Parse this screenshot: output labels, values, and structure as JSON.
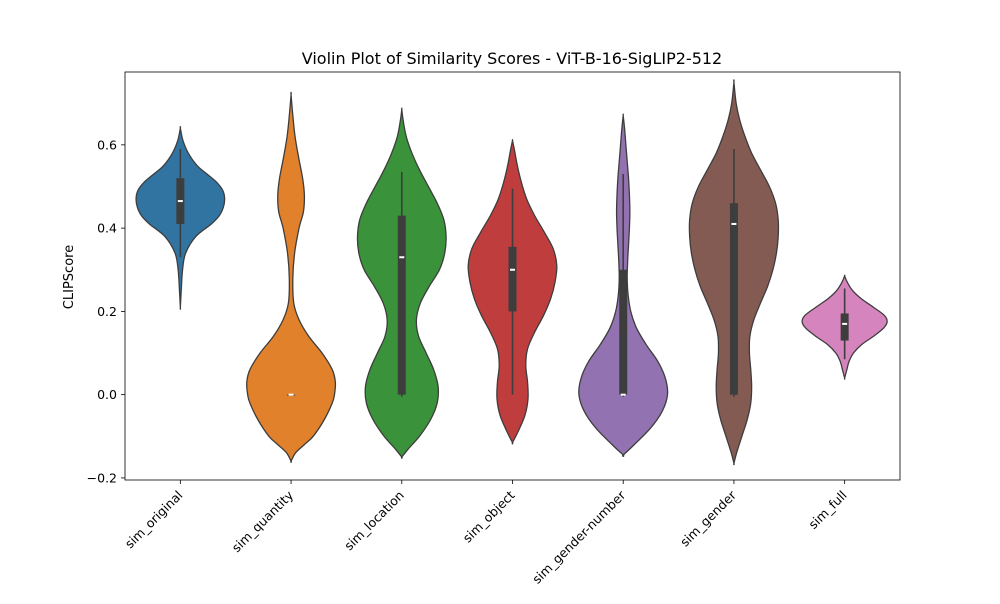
{
  "chart_data": {
    "type": "violin",
    "title": "Violin Plot of Similarity Scores - ViT-B-16-SigLIP2-512",
    "xlabel": "",
    "ylabel": "CLIPScore",
    "ylim": [
      -0.205,
      0.775
    ],
    "yticks": [
      "−0.2",
      "0.0",
      "0.2",
      "0.4",
      "0.6"
    ],
    "ytick_values": [
      -0.2,
      0.0,
      0.2,
      0.4,
      0.6
    ],
    "grid": false,
    "legend": "none",
    "categories": [
      "sim_original",
      "sim_quantity",
      "sim_location",
      "sim_object",
      "sim_gender-number",
      "sim_gender",
      "sim_full"
    ],
    "violins": [
      {
        "category": "sim_original",
        "color": "#3274a1",
        "min": 0.21,
        "max": 0.64,
        "q1": 0.41,
        "median": 0.465,
        "q3": 0.52,
        "whisker_low": 0.33,
        "whisker_high": 0.59,
        "profile": [
          [
            0.21,
            0.0
          ],
          [
            0.25,
            0.02
          ],
          [
            0.3,
            0.05
          ],
          [
            0.34,
            0.12
          ],
          [
            0.38,
            0.35
          ],
          [
            0.41,
            0.7
          ],
          [
            0.43,
            0.88
          ],
          [
            0.45,
            0.97
          ],
          [
            0.47,
            1.0
          ],
          [
            0.49,
            0.96
          ],
          [
            0.51,
            0.82
          ],
          [
            0.53,
            0.6
          ],
          [
            0.55,
            0.38
          ],
          [
            0.58,
            0.18
          ],
          [
            0.61,
            0.06
          ],
          [
            0.64,
            0.0
          ]
        ]
      },
      {
        "category": "sim_quantity",
        "color": "#e1812c",
        "min": -0.16,
        "max": 0.72,
        "q1": 0.0,
        "median": 0.0,
        "q3": 0.0,
        "whisker_low": 0.0,
        "whisker_high": 0.0,
        "profile": [
          [
            -0.16,
            0.0
          ],
          [
            -0.14,
            0.1
          ],
          [
            -0.12,
            0.3
          ],
          [
            -0.1,
            0.5
          ],
          [
            -0.06,
            0.75
          ],
          [
            -0.02,
            0.93
          ],
          [
            0.0,
            0.98
          ],
          [
            0.03,
            1.0
          ],
          [
            0.06,
            0.93
          ],
          [
            0.1,
            0.7
          ],
          [
            0.14,
            0.4
          ],
          [
            0.18,
            0.18
          ],
          [
            0.22,
            0.06
          ],
          [
            0.28,
            0.04
          ],
          [
            0.34,
            0.08
          ],
          [
            0.4,
            0.18
          ],
          [
            0.44,
            0.28
          ],
          [
            0.48,
            0.3
          ],
          [
            0.52,
            0.26
          ],
          [
            0.57,
            0.17
          ],
          [
            0.62,
            0.09
          ],
          [
            0.67,
            0.04
          ],
          [
            0.72,
            0.0
          ]
        ]
      },
      {
        "category": "sim_location",
        "color": "#3a923a",
        "min": -0.15,
        "max": 0.685,
        "q1": 0.0,
        "median": 0.33,
        "q3": 0.43,
        "whisker_low": -0.005,
        "whisker_high": 0.535,
        "profile": [
          [
            -0.15,
            0.0
          ],
          [
            -0.13,
            0.15
          ],
          [
            -0.1,
            0.4
          ],
          [
            -0.06,
            0.65
          ],
          [
            -0.02,
            0.8
          ],
          [
            0.02,
            0.82
          ],
          [
            0.06,
            0.72
          ],
          [
            0.1,
            0.55
          ],
          [
            0.14,
            0.38
          ],
          [
            0.18,
            0.33
          ],
          [
            0.22,
            0.42
          ],
          [
            0.26,
            0.62
          ],
          [
            0.3,
            0.85
          ],
          [
            0.34,
            0.97
          ],
          [
            0.38,
            1.0
          ],
          [
            0.42,
            0.95
          ],
          [
            0.46,
            0.8
          ],
          [
            0.5,
            0.6
          ],
          [
            0.54,
            0.4
          ],
          [
            0.58,
            0.23
          ],
          [
            0.62,
            0.1
          ],
          [
            0.66,
            0.03
          ],
          [
            0.685,
            0.0
          ]
        ]
      },
      {
        "category": "sim_object",
        "color": "#c03d3e",
        "min": -0.115,
        "max": 0.61,
        "q1": 0.2,
        "median": 0.3,
        "q3": 0.355,
        "whisker_low": 0.0,
        "whisker_high": 0.495,
        "profile": [
          [
            -0.115,
            0.0
          ],
          [
            -0.09,
            0.12
          ],
          [
            -0.05,
            0.28
          ],
          [
            -0.01,
            0.35
          ],
          [
            0.03,
            0.34
          ],
          [
            0.07,
            0.3
          ],
          [
            0.11,
            0.34
          ],
          [
            0.15,
            0.5
          ],
          [
            0.19,
            0.7
          ],
          [
            0.23,
            0.86
          ],
          [
            0.27,
            0.96
          ],
          [
            0.31,
            1.0
          ],
          [
            0.35,
            0.92
          ],
          [
            0.39,
            0.72
          ],
          [
            0.43,
            0.5
          ],
          [
            0.47,
            0.32
          ],
          [
            0.51,
            0.2
          ],
          [
            0.55,
            0.11
          ],
          [
            0.59,
            0.04
          ],
          [
            0.61,
            0.0
          ]
        ]
      },
      {
        "category": "sim_gender-number",
        "color": "#9372b2",
        "min": -0.145,
        "max": 0.67,
        "q1": 0.0,
        "median": 0.0,
        "q3": 0.3,
        "whisker_low": -0.005,
        "whisker_high": 0.53,
        "profile": [
          [
            -0.145,
            0.0
          ],
          [
            -0.12,
            0.25
          ],
          [
            -0.08,
            0.62
          ],
          [
            -0.04,
            0.88
          ],
          [
            0.0,
            1.0
          ],
          [
            0.04,
            0.95
          ],
          [
            0.08,
            0.78
          ],
          [
            0.12,
            0.52
          ],
          [
            0.16,
            0.3
          ],
          [
            0.2,
            0.17
          ],
          [
            0.24,
            0.11
          ],
          [
            0.28,
            0.09
          ],
          [
            0.32,
            0.1
          ],
          [
            0.36,
            0.12
          ],
          [
            0.4,
            0.14
          ],
          [
            0.44,
            0.15
          ],
          [
            0.48,
            0.14
          ],
          [
            0.52,
            0.12
          ],
          [
            0.56,
            0.09
          ],
          [
            0.6,
            0.06
          ],
          [
            0.64,
            0.03
          ],
          [
            0.67,
            0.0
          ]
        ]
      },
      {
        "category": "sim_gender",
        "color": "#845b53",
        "min": -0.165,
        "max": 0.75,
        "q1": 0.0,
        "median": 0.41,
        "q3": 0.46,
        "whisker_low": -0.005,
        "whisker_high": 0.59,
        "profile": [
          [
            -0.165,
            0.0
          ],
          [
            -0.14,
            0.06
          ],
          [
            -0.1,
            0.18
          ],
          [
            -0.06,
            0.3
          ],
          [
            -0.02,
            0.38
          ],
          [
            0.02,
            0.4
          ],
          [
            0.06,
            0.38
          ],
          [
            0.1,
            0.35
          ],
          [
            0.14,
            0.36
          ],
          [
            0.18,
            0.45
          ],
          [
            0.22,
            0.6
          ],
          [
            0.26,
            0.76
          ],
          [
            0.3,
            0.88
          ],
          [
            0.34,
            0.96
          ],
          [
            0.38,
            1.0
          ],
          [
            0.42,
            1.0
          ],
          [
            0.46,
            0.94
          ],
          [
            0.5,
            0.8
          ],
          [
            0.54,
            0.6
          ],
          [
            0.58,
            0.4
          ],
          [
            0.62,
            0.25
          ],
          [
            0.66,
            0.13
          ],
          [
            0.7,
            0.05
          ],
          [
            0.75,
            0.0
          ]
        ]
      },
      {
        "category": "sim_full",
        "color": "#d684bd",
        "min": 0.04,
        "max": 0.285,
        "q1": 0.13,
        "median": 0.17,
        "q3": 0.195,
        "whisker_low": 0.085,
        "whisker_high": 0.255,
        "profile": [
          [
            0.04,
            0.0
          ],
          [
            0.06,
            0.05
          ],
          [
            0.08,
            0.1
          ],
          [
            0.1,
            0.2
          ],
          [
            0.12,
            0.38
          ],
          [
            0.14,
            0.65
          ],
          [
            0.16,
            0.88
          ],
          [
            0.175,
            0.96
          ],
          [
            0.19,
            0.9
          ],
          [
            0.21,
            0.65
          ],
          [
            0.23,
            0.38
          ],
          [
            0.25,
            0.18
          ],
          [
            0.27,
            0.06
          ],
          [
            0.285,
            0.0
          ]
        ]
      }
    ]
  }
}
